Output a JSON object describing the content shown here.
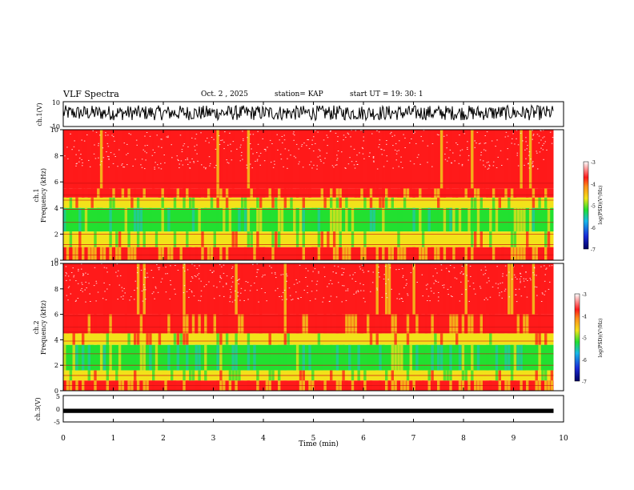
{
  "header": {
    "title": "VLF Spectra",
    "date": "Oct. 2 , 2025",
    "station": "station= KAP",
    "start": "start UT = 19: 30: 1"
  },
  "colors": {
    "red": "#ff1a1a",
    "yellow": "#f2e21a",
    "green": "#22e030",
    "cyan": "#22c8a8",
    "blue": "#1a2bd8",
    "waveform": "#000000"
  },
  "chart_data": [
    {
      "type": "line",
      "name": "ch1-waveform",
      "ylabel": "ch.1(V)",
      "ylim": [
        -10,
        10
      ],
      "y_ticks": [
        "10",
        "-10"
      ],
      "x_range": [
        0,
        10
      ],
      "data_span_min": [
        0,
        9.8
      ],
      "description_values": "noisy signal mostly between about -9 and 7 V"
    },
    {
      "type": "heatmap",
      "name": "ch1-spectrogram",
      "ylabel_top": "ch.1",
      "ylabel": "Frequency (kHz)",
      "ylim": [
        0,
        10
      ],
      "y_ticks": [
        "0",
        "2",
        "4",
        "6",
        "8",
        "10"
      ],
      "x_range": [
        0,
        10
      ],
      "colorbar": {
        "label": "log(PSD)(V²/Hz)",
        "range": [
          -7,
          -3
        ],
        "ticks": [
          "-3",
          "-4",
          "-5",
          "-6",
          "-7"
        ]
      },
      "bands_khz": [
        {
          "from": 5.5,
          "to": 10,
          "level": -3.2
        },
        {
          "from": 4.8,
          "to": 5.5,
          "level": -3.7
        },
        {
          "from": 4.0,
          "to": 4.8,
          "level": -4.3
        },
        {
          "from": 2.2,
          "to": 4.0,
          "level": -4.8
        },
        {
          "from": 1.0,
          "to": 2.2,
          "level": -4.4
        },
        {
          "from": 0,
          "to": 1.0,
          "level": -4.0
        }
      ]
    },
    {
      "type": "heatmap",
      "name": "ch2-spectrogram",
      "ylabel_top": "ch.2",
      "ylabel": "Frequency (kHz)",
      "ylim": [
        0,
        10
      ],
      "y_ticks": [
        "0",
        "2",
        "4",
        "6",
        "8",
        "10"
      ],
      "x_range": [
        0,
        10
      ],
      "colorbar": {
        "label": "log(PSD)(V²/Hz)",
        "range": [
          -7,
          -3
        ],
        "ticks": [
          "-3",
          "-4",
          "-5",
          "-6",
          "-7"
        ]
      },
      "bands_khz": [
        {
          "from": 6.0,
          "to": 10,
          "level": -3.3
        },
        {
          "from": 4.5,
          "to": 6.0,
          "level": -3.8
        },
        {
          "from": 3.6,
          "to": 4.5,
          "level": -4.3
        },
        {
          "from": 1.6,
          "to": 3.6,
          "level": -5.0
        },
        {
          "from": 0.8,
          "to": 1.6,
          "level": -4.5
        },
        {
          "from": 0,
          "to": 0.8,
          "level": -4.1
        }
      ]
    },
    {
      "type": "line",
      "name": "ch3-waveform",
      "ylabel": "ch.3(V)",
      "ylim": [
        -5,
        5
      ],
      "y_ticks": [
        "5",
        "0",
        "-5"
      ],
      "x_range": [
        0,
        10
      ],
      "data_span_min": [
        0,
        9.8
      ],
      "level_v": [
        -1.6,
        0.0
      ]
    }
  ],
  "x_axis": {
    "label": "Time (min)",
    "ticks": [
      "0",
      "1",
      "2",
      "3",
      "4",
      "5",
      "6",
      "7",
      "8",
      "9",
      "10"
    ]
  }
}
